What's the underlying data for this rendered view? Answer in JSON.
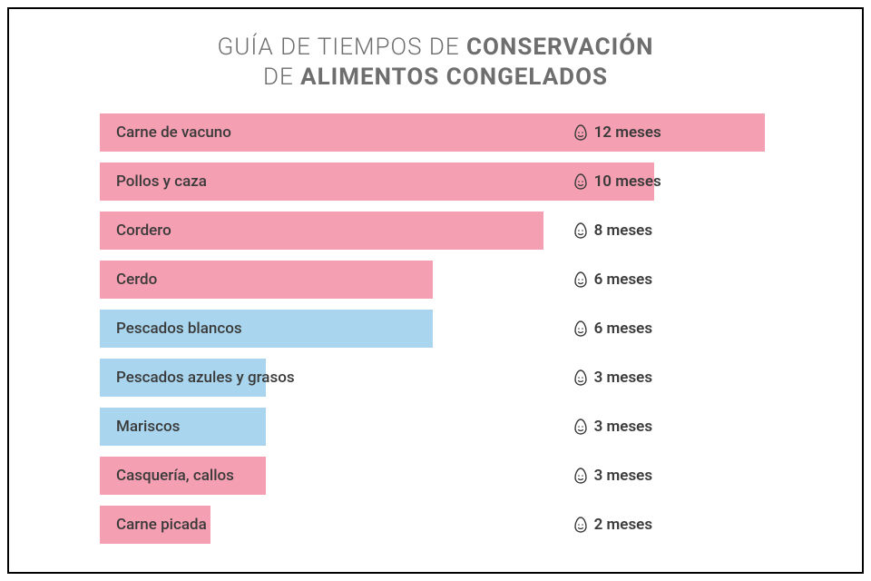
{
  "title_line1_a": "GUÍA DE TIEMPOS DE ",
  "title_line1_b": "CONSERVACIÓN",
  "title_line2_a": "DE ",
  "title_line2_b": "ALIMENTOS CONGELADOS",
  "chart": {
    "type": "bar",
    "orientation": "horizontal",
    "max_value": 12,
    "value_unit": "meses",
    "value_column_left_pct": 67,
    "bar_full_width_pct": 94,
    "colors": {
      "meat": "#f5a0b2",
      "fish": "#a9d6ee",
      "text": "#3a3a3a",
      "title_text": "#6e6e6e",
      "border": "#000000",
      "background": "#ffffff"
    },
    "icon_stroke": "#3a3a3a",
    "rows": [
      {
        "label": "Carne de vacuno",
        "value": 12,
        "color": "meat",
        "value_on_bar": true
      },
      {
        "label": "Pollos y caza",
        "value": 10,
        "color": "meat",
        "value_on_bar": true
      },
      {
        "label": "Cordero",
        "value": 8,
        "color": "meat",
        "value_on_bar": false
      },
      {
        "label": "Cerdo",
        "value": 6,
        "color": "meat",
        "value_on_bar": false
      },
      {
        "label": "Pescados blancos",
        "value": 6,
        "color": "fish",
        "value_on_bar": false
      },
      {
        "label": "Pescados azules y grasos",
        "value": 3,
        "color": "fish",
        "value_on_bar": false
      },
      {
        "label": "Mariscos",
        "value": 3,
        "color": "fish",
        "value_on_bar": false
      },
      {
        "label": "Casquería, callos",
        "value": 3,
        "color": "meat",
        "value_on_bar": false
      },
      {
        "label": "Carne picada",
        "value": 2,
        "color": "meat",
        "value_on_bar": false
      }
    ]
  }
}
